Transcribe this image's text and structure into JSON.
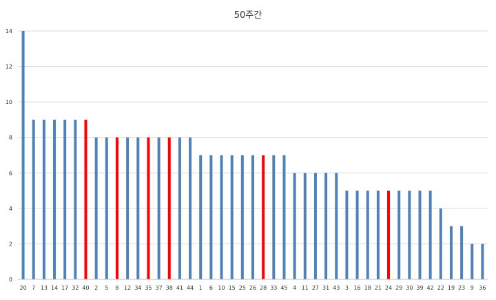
{
  "chart_data": {
    "type": "bar",
    "title": "50주간",
    "xlabel": "",
    "ylabel": "",
    "ylim": [
      0,
      14
    ],
    "yticks": [
      0,
      2,
      4,
      6,
      8,
      10,
      12,
      14
    ],
    "grid": true,
    "legend": "none",
    "categories": [
      "20",
      "7",
      "13",
      "14",
      "17",
      "32",
      "40",
      "2",
      "5",
      "8",
      "12",
      "34",
      "35",
      "37",
      "38",
      "41",
      "44",
      "1",
      "6",
      "10",
      "15",
      "25",
      "26",
      "28",
      "33",
      "45",
      "4",
      "11",
      "27",
      "31",
      "43",
      "3",
      "16",
      "18",
      "21",
      "24",
      "29",
      "30",
      "39",
      "42",
      "22",
      "19",
      "23",
      "9",
      "36"
    ],
    "values": [
      14,
      9,
      9,
      9,
      9,
      9,
      9,
      8,
      8,
      8,
      8,
      8,
      8,
      8,
      8,
      8,
      8,
      7,
      7,
      7,
      7,
      7,
      7,
      7,
      7,
      7,
      6,
      6,
      6,
      6,
      6,
      5,
      5,
      5,
      5,
      5,
      5,
      5,
      5,
      5,
      4,
      3,
      3,
      2,
      2
    ],
    "highlighted": [
      "40",
      "8",
      "35",
      "38",
      "28",
      "24"
    ],
    "colors": {
      "bar": "#4f81bd",
      "highlight": "#ff0000",
      "grid": "#d9d9d9",
      "axis": "#bfbfbf"
    }
  }
}
